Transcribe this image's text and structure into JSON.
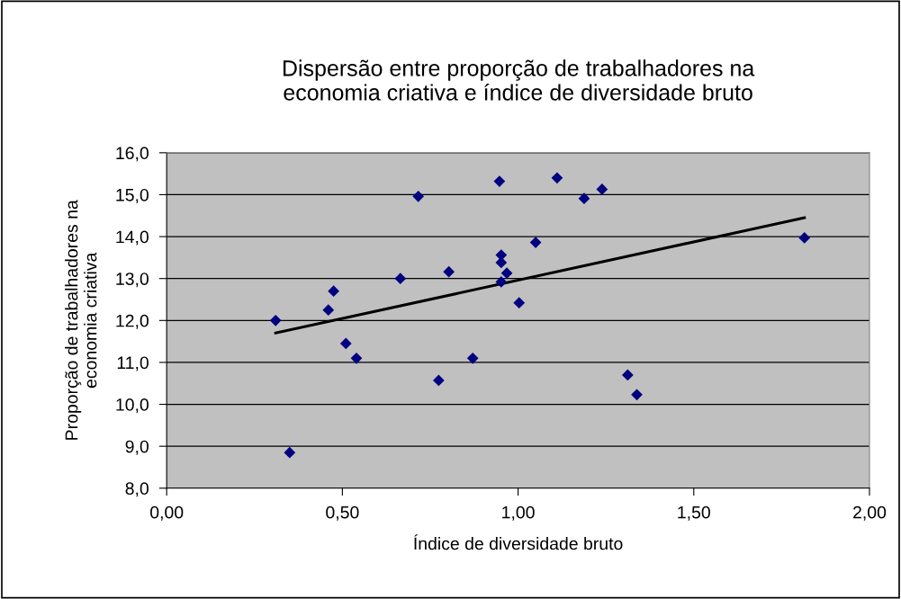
{
  "chart_data": {
    "type": "scatter",
    "title": "Dispersão entre proporção de trabalhadores na\neconomia criativa e índice de diversidade bruto",
    "xlabel": "Índice de diversidade bruto",
    "ylabel": "Proporção de trabalhadores na\neconomia criativa",
    "xlim": [
      0,
      2
    ],
    "xticks": [
      {
        "value": 0,
        "label": "0,00"
      },
      {
        "value": 0.5,
        "label": "0,50"
      },
      {
        "value": 1,
        "label": "1,00"
      },
      {
        "value": 1.5,
        "label": "1,50"
      },
      {
        "value": 2,
        "label": "2,00"
      }
    ],
    "ylim": [
      8,
      16
    ],
    "yticks": [
      {
        "value": 8,
        "label": "8,0"
      },
      {
        "value": 9,
        "label": "9,0"
      },
      {
        "value": 10,
        "label": "10,0"
      },
      {
        "value": 11,
        "label": "11,0"
      },
      {
        "value": 12,
        "label": "12,0"
      },
      {
        "value": 13,
        "label": "13,0"
      },
      {
        "value": 14,
        "label": "14,0"
      },
      {
        "value": 15,
        "label": "15,0"
      },
      {
        "value": 16,
        "label": "16,0"
      }
    ],
    "grid": "y",
    "marker": "diamond",
    "series": [
      {
        "color": "#000080",
        "x": [
          0.31,
          0.35,
          0.46,
          0.475,
          0.51,
          0.54,
          0.665,
          0.716,
          0.774,
          0.803,
          0.871,
          0.947,
          0.952,
          0.952,
          0.968,
          0.952,
          1.003,
          1.05,
          1.111,
          1.188,
          1.239,
          1.312,
          1.338,
          1.815
        ],
        "values": [
          12.0,
          8.85,
          12.25,
          12.7,
          11.45,
          11.1,
          13.0,
          14.96,
          10.57,
          13.16,
          11.1,
          15.32,
          13.56,
          13.38,
          13.13,
          12.92,
          12.42,
          13.86,
          15.4,
          14.91,
          15.13,
          10.7,
          10.23,
          13.97
        ]
      },
      {
        "type": "line",
        "color": "#000000",
        "marker": "none",
        "line_style": "solid",
        "x": [
          0.31,
          1.815
        ],
        "values": [
          11.7,
          14.45
        ]
      }
    ]
  }
}
